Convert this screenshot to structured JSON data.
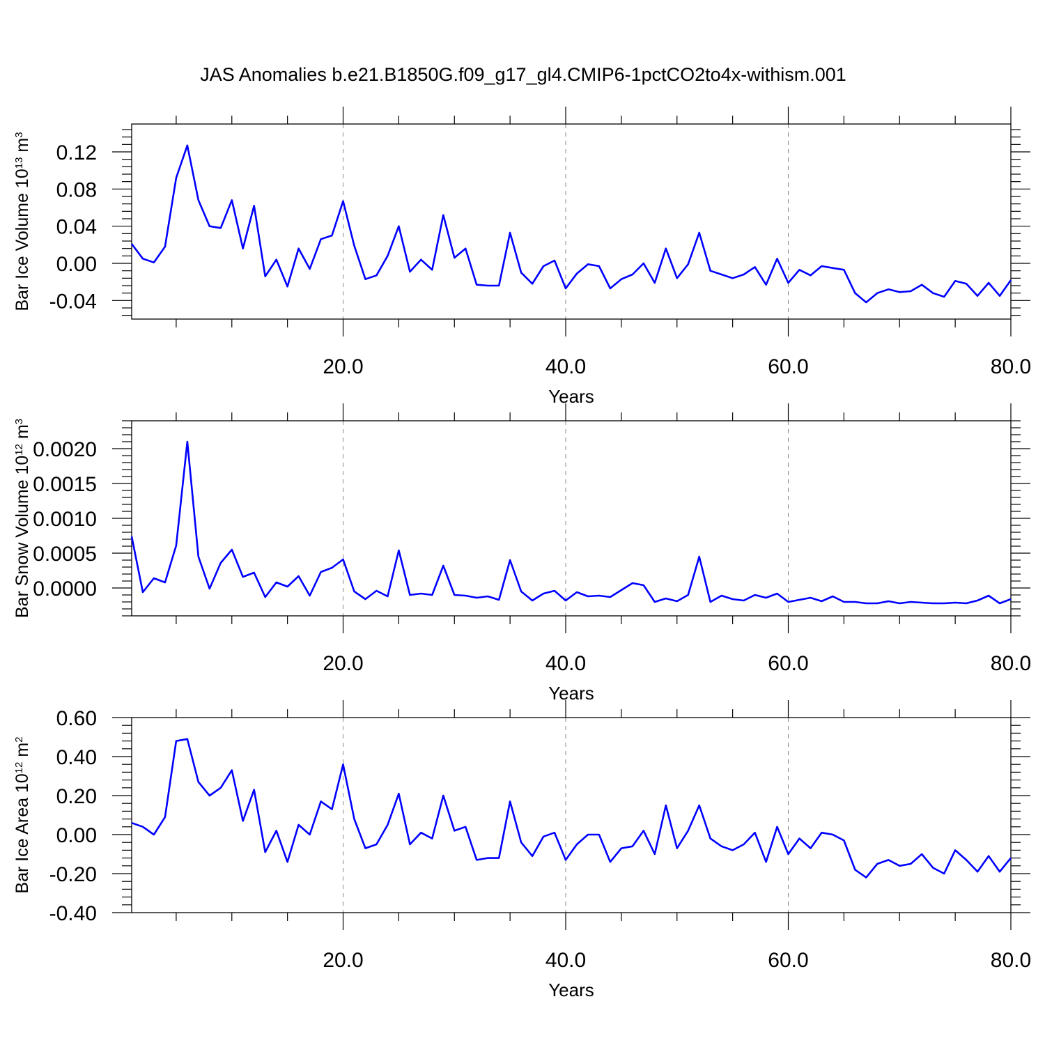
{
  "figure_title": "JAS Anomalies b.e21.B1850G.f09_g17_gl4.CMIP6-1pctCO2to4x-withism.001",
  "colors": {
    "line": "#0000ff",
    "axes": "#000000",
    "grid": "#888888"
  },
  "chart_data": [
    {
      "type": "line",
      "xlabel": "Years",
      "ylabel": {
        "text": "Bar Ice Volume 10",
        "sup1": "13",
        "mid": " m",
        "sup2": "3"
      },
      "xlim": [
        1,
        80
      ],
      "ylim": [
        -0.06,
        0.15
      ],
      "xticks": [
        20,
        40,
        60,
        80
      ],
      "xtick_labels": [
        "20.0",
        "40.0",
        "60.0",
        "80.0"
      ],
      "yticks": [
        -0.04,
        0.0,
        0.04,
        0.08,
        0.12
      ],
      "ytick_labels": [
        "-0.04",
        "0.00",
        "0.04",
        "0.08",
        "0.12"
      ],
      "grid": "vertical dashed at major x ticks",
      "series": [
        {
          "x": [
            1,
            2,
            3,
            4,
            5,
            6,
            7,
            8,
            9,
            10,
            11,
            12,
            13,
            14,
            15,
            16,
            17,
            18,
            19,
            20,
            21,
            22,
            23,
            24,
            25,
            26,
            27,
            28,
            29,
            30,
            31,
            32,
            33,
            34,
            35,
            36,
            37,
            38,
            39,
            40,
            41,
            42,
            43,
            44,
            45,
            46,
            47,
            48,
            49,
            50,
            51,
            52,
            53,
            54,
            55,
            56,
            57,
            58,
            59,
            60,
            61,
            62,
            63,
            64,
            65,
            66,
            67,
            68,
            69,
            70,
            71,
            72,
            73,
            74,
            75,
            76,
            77,
            78,
            79,
            80
          ],
          "values": [
            0.021,
            0.005,
            0.001,
            0.018,
            0.092,
            0.127,
            0.068,
            0.04,
            0.038,
            0.068,
            0.016,
            0.062,
            -0.014,
            0.004,
            -0.025,
            0.016,
            -0.006,
            0.026,
            0.03,
            0.067,
            0.019,
            -0.017,
            -0.013,
            0.008,
            0.04,
            -0.009,
            0.004,
            -0.007,
            0.052,
            0.006,
            0.016,
            -0.023,
            -0.024,
            -0.024,
            0.033,
            -0.01,
            -0.022,
            -0.003,
            0.003,
            -0.027,
            -0.011,
            -0.001,
            -0.003,
            -0.027,
            -0.017,
            -0.012,
            0.0,
            -0.021,
            0.016,
            -0.016,
            -0.001,
            0.033,
            -0.008,
            -0.012,
            -0.016,
            -0.012,
            -0.004,
            -0.023,
            0.005,
            -0.021,
            -0.007,
            -0.013,
            -0.003,
            -0.005,
            -0.007,
            -0.032,
            -0.042,
            -0.032,
            -0.028,
            -0.031,
            -0.03,
            -0.023,
            -0.032,
            -0.036,
            -0.019,
            -0.022,
            -0.035,
            -0.021,
            -0.035,
            -0.018
          ]
        }
      ]
    },
    {
      "type": "line",
      "xlabel": "Years",
      "ylabel": {
        "text": "Bar Snow Volume 10",
        "sup1": "12",
        "mid": " m",
        "sup2": "3"
      },
      "xlim": [
        1,
        80
      ],
      "ylim": [
        -0.0004,
        0.0024
      ],
      "xticks": [
        20,
        40,
        60,
        80
      ],
      "xtick_labels": [
        "20.0",
        "40.0",
        "60.0",
        "80.0"
      ],
      "yticks": [
        0.0,
        0.0005,
        0.001,
        0.0015,
        0.002
      ],
      "ytick_labels": [
        "0.0000",
        "0.0005",
        "0.0010",
        "0.0015",
        "0.0020"
      ],
      "grid": "vertical dashed at major x ticks",
      "series": [
        {
          "x": [
            1,
            2,
            3,
            4,
            5,
            6,
            7,
            8,
            9,
            10,
            11,
            12,
            13,
            14,
            15,
            16,
            17,
            18,
            19,
            20,
            21,
            22,
            23,
            24,
            25,
            26,
            27,
            28,
            29,
            30,
            31,
            32,
            33,
            34,
            35,
            36,
            37,
            38,
            39,
            40,
            41,
            42,
            43,
            44,
            45,
            46,
            47,
            48,
            49,
            50,
            51,
            52,
            53,
            54,
            55,
            56,
            57,
            58,
            59,
            60,
            61,
            62,
            63,
            64,
            65,
            66,
            67,
            68,
            69,
            70,
            71,
            72,
            73,
            74,
            75,
            76,
            77,
            78,
            79,
            80
          ],
          "values": [
            0.00074,
            -6e-05,
            0.00014,
            8e-05,
            0.00061,
            0.0021,
            0.00045,
            -1e-05,
            0.00036,
            0.00055,
            0.00016,
            0.00022,
            -0.00013,
            8e-05,
            2e-05,
            0.00017,
            -0.00011,
            0.00023,
            0.00029,
            0.00041,
            -5e-05,
            -0.00016,
            -4e-05,
            -0.00012,
            0.00054,
            -0.0001,
            -8e-05,
            -0.0001,
            0.00032,
            -0.0001,
            -0.00011,
            -0.00014,
            -0.00012,
            -0.00017,
            0.0004,
            -5e-05,
            -0.00018,
            -8e-05,
            -4e-05,
            -0.00018,
            -6e-05,
            -0.00012,
            -0.00011,
            -0.00013,
            -3e-05,
            7e-05,
            4e-05,
            -0.0002,
            -0.00015,
            -0.00019,
            -0.0001,
            0.00045,
            -0.0002,
            -0.00011,
            -0.00016,
            -0.00018,
            -0.0001,
            -0.00014,
            -8e-05,
            -0.0002,
            -0.00017,
            -0.00014,
            -0.00019,
            -0.00012,
            -0.0002,
            -0.0002,
            -0.00022,
            -0.00022,
            -0.00019,
            -0.00022,
            -0.0002,
            -0.00021,
            -0.00022,
            -0.00022,
            -0.00021,
            -0.00022,
            -0.00018,
            -0.00011,
            -0.00022,
            -0.00016
          ]
        }
      ]
    },
    {
      "type": "line",
      "xlabel": "Years",
      "ylabel": {
        "text": "Bar Ice Area 10",
        "sup1": "12",
        "mid": " m",
        "sup2": "2"
      },
      "xlim": [
        1,
        80
      ],
      "ylim": [
        -0.4,
        0.6
      ],
      "xticks": [
        20,
        40,
        60,
        80
      ],
      "xtick_labels": [
        "20.0",
        "40.0",
        "60.0",
        "80.0"
      ],
      "yticks": [
        -0.4,
        -0.2,
        0.0,
        0.2,
        0.4,
        0.6
      ],
      "ytick_labels": [
        "-0.40",
        "-0.20",
        "0.00",
        "0.20",
        "0.40",
        "0.60"
      ],
      "grid": "vertical dashed at major x ticks",
      "series": [
        {
          "x": [
            1,
            2,
            3,
            4,
            5,
            6,
            7,
            8,
            9,
            10,
            11,
            12,
            13,
            14,
            15,
            16,
            17,
            18,
            19,
            20,
            21,
            22,
            23,
            24,
            25,
            26,
            27,
            28,
            29,
            30,
            31,
            32,
            33,
            34,
            35,
            36,
            37,
            38,
            39,
            40,
            41,
            42,
            43,
            44,
            45,
            46,
            47,
            48,
            49,
            50,
            51,
            52,
            53,
            54,
            55,
            56,
            57,
            58,
            59,
            60,
            61,
            62,
            63,
            64,
            65,
            66,
            67,
            68,
            69,
            70,
            71,
            72,
            73,
            74,
            75,
            76,
            77,
            78,
            79,
            80
          ],
          "values": [
            0.06,
            0.04,
            0.0,
            0.09,
            0.48,
            0.49,
            0.27,
            0.2,
            0.24,
            0.33,
            0.07,
            0.23,
            -0.09,
            0.02,
            -0.14,
            0.05,
            0.0,
            0.17,
            0.13,
            0.36,
            0.08,
            -0.07,
            -0.05,
            0.05,
            0.21,
            -0.05,
            0.01,
            -0.02,
            0.2,
            0.02,
            0.04,
            -0.13,
            -0.12,
            -0.12,
            0.17,
            -0.04,
            -0.11,
            -0.01,
            0.01,
            -0.13,
            -0.05,
            0.0,
            0.0,
            -0.14,
            -0.07,
            -0.06,
            0.02,
            -0.1,
            0.15,
            -0.07,
            0.02,
            0.15,
            -0.02,
            -0.06,
            -0.08,
            -0.05,
            0.01,
            -0.14,
            0.04,
            -0.1,
            -0.02,
            -0.07,
            0.01,
            0.0,
            -0.03,
            -0.18,
            -0.22,
            -0.15,
            -0.13,
            -0.16,
            -0.15,
            -0.1,
            -0.17,
            -0.2,
            -0.08,
            -0.13,
            -0.19,
            -0.11,
            -0.19,
            -0.12
          ]
        }
      ]
    }
  ]
}
